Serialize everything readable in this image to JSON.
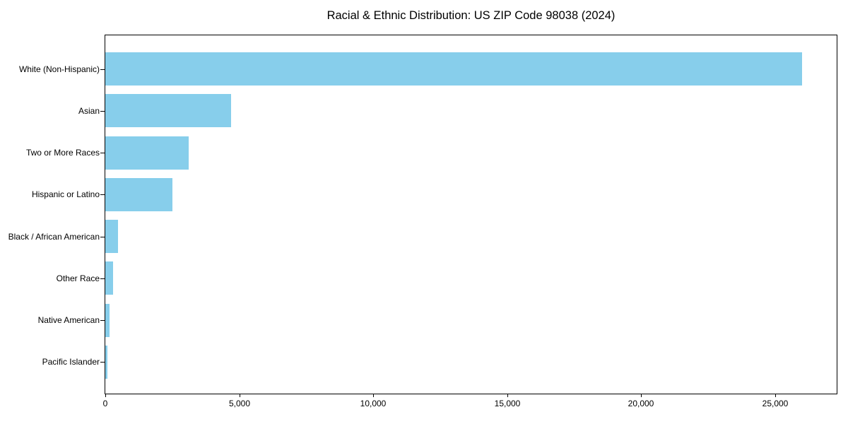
{
  "chart_data": {
    "type": "bar",
    "orientation": "horizontal",
    "title": "Racial & Ethnic Distribution: US ZIP Code 98038 (2024)",
    "categories": [
      "White (Non-Hispanic)",
      "Asian",
      "Two or More Races",
      "Hispanic or Latino",
      "Black / African American",
      "Other Race",
      "Native American",
      "Pacific Islander"
    ],
    "values": [
      26000,
      4700,
      3100,
      2500,
      470,
      300,
      150,
      90
    ],
    "xlabel": "",
    "ylabel": "",
    "xlim": [
      0,
      27300
    ],
    "x_ticks": [
      0,
      5000,
      10000,
      15000,
      20000,
      25000
    ],
    "x_tick_labels": [
      "0",
      "5,000",
      "10,000",
      "15,000",
      "20,000",
      "25,000"
    ],
    "bar_color": "#87CEEB",
    "grid": false,
    "legend": "none",
    "background_color": "#FFFFFF",
    "axis_color": "#000000",
    "text_color": "#000000"
  }
}
